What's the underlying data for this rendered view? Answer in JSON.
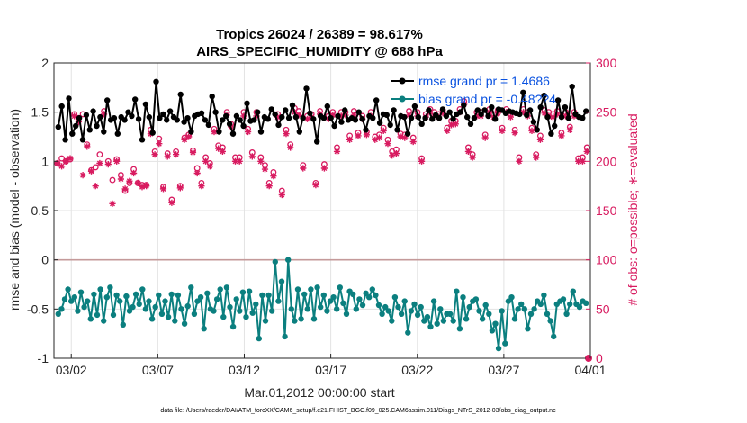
{
  "chart_data": {
    "type": "line",
    "title_line1": "Tropics 26024 / 26389 = 98.617%",
    "title_line2": "AIRS_SPECIFIC_HUMIDITY @ 688 hPa",
    "xlabel": "Mar.01,2012 00:00:00 start",
    "ylabel_left": "rmse and bias (model - observation)",
    "ylabel_right": "# of obs: o=possible; ∗=evaluated",
    "footer": "data file: /Users/raeder/DAI/ATM_forcXX/CAM6_setup/f.e21.FHIST_BGC.f09_025.CAM6assim.011/Diags_NTrS_2012-03/obs_diag_output.nc",
    "xlim": [
      0,
      31
    ],
    "ylim_left": [
      -1,
      2
    ],
    "ylim_right": [
      0,
      300
    ],
    "x_ticks": [
      {
        "value": 1,
        "label": "03/02"
      },
      {
        "value": 6,
        "label": "03/07"
      },
      {
        "value": 11,
        "label": "03/12"
      },
      {
        "value": 16,
        "label": "03/17"
      },
      {
        "value": 21,
        "label": "03/22"
      },
      {
        "value": 26,
        "label": "03/27"
      },
      {
        "value": 31,
        "label": "04/01"
      }
    ],
    "y_ticks_left": [
      "-1",
      "-0.5",
      "0",
      "0.5",
      "1",
      "1.5",
      "2"
    ],
    "y_ticks_right": [
      "0",
      "50",
      "100",
      "150",
      "200",
      "250",
      "300"
    ],
    "zero_line": 0,
    "colors": {
      "rmse": "#000000",
      "bias": "#0b7f7f",
      "obs": "#d81b60",
      "legend_text": "#0a52e0",
      "right_axis": "#d81b60",
      "zero_line": "#c49a9a"
    },
    "series": [
      {
        "name": "rmse grand pr = 1.4686",
        "axis": "left",
        "values": [
          1.35,
          1.56,
          1.22,
          1.64,
          1.28,
          1.36,
          1.44,
          1.22,
          1.47,
          1.32,
          1.51,
          1.36,
          1.45,
          1.3,
          1.62,
          1.42,
          1.44,
          1.28,
          1.45,
          1.42,
          1.5,
          1.46,
          1.63,
          1.43,
          1.22,
          1.58,
          1.45,
          1.29,
          1.81,
          1.44,
          1.48,
          1.42,
          1.51,
          1.45,
          1.42,
          1.68,
          1.4,
          1.44,
          1.3,
          1.46,
          1.48,
          1.49,
          1.42,
          1.37,
          1.66,
          1.5,
          1.3,
          1.42,
          1.46,
          1.38,
          1.28,
          1.46,
          1.42,
          1.36,
          1.59,
          1.41,
          1.42,
          1.5,
          1.3,
          1.45,
          1.43,
          1.53,
          1.48,
          1.37,
          1.45,
          1.52,
          1.44,
          1.57,
          1.45,
          1.3,
          1.44,
          1.74,
          1.49,
          1.43,
          1.2,
          1.46,
          1.44,
          1.56,
          1.44,
          1.36,
          1.46,
          1.4,
          1.52,
          1.42,
          1.44,
          1.42,
          1.5,
          1.43,
          1.32,
          1.46,
          1.44,
          1.62,
          1.39,
          1.48,
          1.47,
          1.37,
          1.52,
          1.32,
          1.46,
          1.45,
          1.28,
          1.44,
          1.56,
          1.45,
          1.38,
          1.44,
          1.52,
          1.43,
          1.47,
          1.44,
          1.53,
          1.46,
          1.5,
          1.43,
          1.48,
          1.5,
          1.57,
          1.45,
          1.38,
          1.44,
          1.52,
          1.48,
          1.52,
          1.46,
          1.55,
          1.43,
          1.53,
          1.52,
          1.49,
          1.51,
          1.5,
          1.49,
          1.48,
          1.7,
          1.47,
          1.52,
          1.4,
          1.32,
          1.55,
          1.67,
          1.45,
          1.28,
          1.36,
          1.62,
          1.45,
          1.55,
          1.44,
          1.76,
          1.48,
          1.45,
          1.44,
          1.51
        ]
      },
      {
        "name": "bias grand pr = -0.48??4",
        "axis": "left",
        "values": [
          -0.55,
          -0.5,
          -0.4,
          -0.3,
          -0.42,
          -0.38,
          -0.52,
          -0.33,
          -0.48,
          -0.42,
          -0.6,
          -0.35,
          -0.56,
          -0.3,
          -0.62,
          -0.38,
          -0.28,
          -0.56,
          -0.36,
          -0.42,
          -0.66,
          -0.37,
          -0.52,
          -0.48,
          -0.35,
          -0.45,
          -0.3,
          -0.5,
          -0.42,
          -0.6,
          -0.48,
          -0.36,
          -0.55,
          -0.42,
          -0.58,
          -0.35,
          -0.62,
          -0.36,
          -0.5,
          -0.65,
          -0.47,
          -0.28,
          -0.55,
          -0.42,
          -0.38,
          -0.7,
          -0.34,
          -0.5,
          -0.52,
          -0.4,
          -0.3,
          -0.58,
          -0.28,
          -0.48,
          -0.68,
          -0.4,
          -0.52,
          -0.33,
          -0.58,
          -0.32,
          -0.54,
          -0.45,
          -0.8,
          -0.36,
          -0.62,
          -0.36,
          -0.52,
          -0.02,
          -0.42,
          -0.22,
          -0.78,
          0.0,
          -0.5,
          -0.62,
          -0.3,
          -0.6,
          -0.35,
          -0.5,
          -0.3,
          -0.6,
          -0.28,
          -0.48,
          -0.36,
          -0.52,
          -0.42,
          -0.38,
          -0.5,
          -0.28,
          -0.44,
          -0.55,
          -0.32,
          -0.35,
          -0.5,
          -0.4,
          -0.46,
          -0.34,
          -0.38,
          -0.3,
          -0.36,
          -0.46,
          -0.55,
          -0.48,
          -0.52,
          -0.62,
          -0.38,
          -0.48,
          -0.55,
          -0.42,
          -0.74,
          -0.52,
          -0.45,
          -0.56,
          -0.48,
          -0.62,
          -0.58,
          -0.68,
          -0.42,
          -0.65,
          -0.5,
          -0.62,
          -0.55,
          -0.55,
          -0.62,
          -0.32,
          -0.7,
          -0.38,
          -0.6,
          -0.48,
          -0.42,
          -0.4,
          -0.52,
          -0.6,
          -0.46,
          -0.55,
          -0.72,
          -0.65,
          -0.9,
          -0.52,
          -0.85,
          -0.42,
          -0.38,
          -0.6,
          -0.5,
          -0.45,
          -0.5,
          -0.7,
          -0.55,
          -0.5,
          -0.42,
          -0.45,
          -0.36,
          -0.55,
          -0.62,
          -0.78,
          -0.45,
          -0.42,
          -0.4,
          -0.55,
          -0.45,
          -0.32,
          -0.45,
          -0.48,
          -0.42,
          -0.44
        ]
      },
      {
        "name": "possible",
        "axis": "right",
        "marker": "o",
        "values": [
          198,
          203,
          200,
          202,
          248,
          244,
          248,
          217,
          191,
          194,
          207,
          251,
          200,
          181,
          202,
          186,
          170,
          178,
          192,
          178,
          176,
          176,
          232,
          210,
          223,
          174,
          208,
          161,
          210,
          175,
          224,
          227,
          211,
          193,
          178,
          204,
          198,
          233,
          216,
          214,
          250,
          238,
          204,
          204,
          250,
          233,
          209,
          250,
          204,
          196,
          178,
          189,
          248,
          170,
          232,
          217,
          254,
          251,
          196,
          246,
          248,
          178,
          251,
          197,
          246,
          250,
          214,
          250,
          250,
          226,
          251,
          229,
          246,
          230,
          250,
          225,
          227,
          234,
          222,
          210,
          212,
          228,
          227,
          251,
          224,
          250,
          203,
          248,
          253,
          250,
          248,
          252,
          234,
          241,
          241,
          253,
          261,
          214,
          207,
          250,
          250,
          227,
          253,
          248,
          252,
          234,
          253,
          248,
          232,
          204,
          253,
          250,
          234,
          207,
          226,
          252,
          250,
          248,
          251,
          229,
          250,
          235,
          250,
          203,
          204,
          214
        ]
      },
      {
        "name": "evaluated",
        "axis": "right",
        "marker": "*",
        "values": [
          198,
          195,
          200,
          203,
          246,
          240,
          186,
          215,
          190,
          175,
          198,
          248,
          197,
          157,
          200,
          182,
          172,
          180,
          188,
          178,
          174,
          175,
          228,
          207,
          218,
          172,
          205,
          158,
          207,
          173,
          222,
          225,
          209,
          188,
          175,
          200,
          195,
          230,
          213,
          210,
          247,
          235,
          200,
          200,
          246,
          230,
          205,
          246,
          200,
          192,
          175,
          185,
          245,
          166,
          228,
          214,
          250,
          247,
          193,
          243,
          245,
          176,
          248,
          193,
          243,
          247,
          210,
          246,
          247,
          222,
          247,
          226,
          243,
          227,
          246,
          222,
          224,
          231,
          218,
          206,
          208,
          225,
          224,
          247,
          220,
          246,
          200,
          245,
          250,
          246,
          245,
          249,
          231,
          237,
          238,
          250,
          258,
          210,
          204,
          246,
          246,
          224,
          250,
          245,
          249,
          231,
          250,
          245,
          229,
          200,
          250,
          246,
          231,
          204,
          222,
          249,
          246,
          245,
          248,
          226,
          246,
          232,
          246,
          200,
          200,
          210
        ]
      }
    ]
  }
}
